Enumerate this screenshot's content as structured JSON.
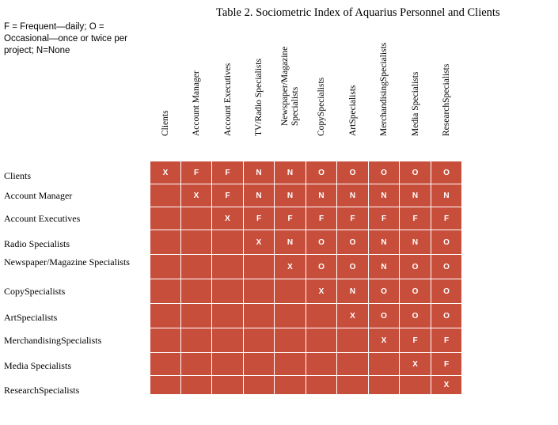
{
  "title": "Table 2. Sociometric Index of Aquarius Personnel and Clients",
  "legend": "F = Frequent—daily; O = Occasional—once or twice per project; N=None",
  "colors": {
    "cell": "#c84e3c",
    "grid_line": "#ffffff",
    "cell_text": "#ffffff"
  },
  "columns": [
    [
      "Clients"
    ],
    [
      "Account  Manager"
    ],
    [
      "Account  Executives"
    ],
    [
      "TV/Radio Specialists"
    ],
    [
      "Newspaper/Magazine",
      "Specialists"
    ],
    [
      "CopySpecialists"
    ],
    [
      "ArtSpecialists"
    ],
    [
      "MerchandisingSpecialists"
    ],
    [
      "Media Specialists"
    ],
    [
      "ResearchSpecialists"
    ]
  ],
  "rows": [
    {
      "label": "Clients",
      "cells": [
        "X",
        "F",
        "F",
        "N",
        "N",
        "O",
        "O",
        "O",
        "O",
        "O"
      ]
    },
    {
      "label": "Account  Manager",
      "cells": [
        "",
        "X",
        "F",
        "N",
        "N",
        "N",
        "N",
        "N",
        "N",
        "N"
      ]
    },
    {
      "label": "Account  Executives",
      "cells": [
        "",
        "",
        "X",
        "F",
        "F",
        "F",
        "F",
        "F",
        "F",
        "F"
      ]
    },
    {
      "label": "Radio Specialists",
      "cells": [
        "",
        "",
        "",
        "X",
        "N",
        "O",
        "O",
        "N",
        "N",
        "O"
      ]
    },
    {
      "label": "Newspaper/Magazine Specialists",
      "cells": [
        "",
        "",
        "",
        "",
        "X",
        "O",
        "O",
        "N",
        "O",
        "O"
      ]
    },
    {
      "label": "CopySpecialists",
      "cells": [
        "",
        "",
        "",
        "",
        "",
        "X",
        "N",
        "O",
        "O",
        "O"
      ]
    },
    {
      "label": "ArtSpecialists",
      "cells": [
        "",
        "",
        "",
        "",
        "",
        "",
        "X",
        "O",
        "O",
        "O"
      ]
    },
    {
      "label": "MerchandisingSpecialists",
      "cells": [
        "",
        "",
        "",
        "",
        "",
        "",
        "",
        "X",
        "F",
        "F"
      ]
    },
    {
      "label": "Media Specialists",
      "cells": [
        "",
        "",
        "",
        "",
        "",
        "",
        "",
        "",
        "X",
        "F"
      ]
    },
    {
      "label": "ResearchSpecialists",
      "cells": [
        "",
        "",
        "",
        "",
        "",
        "",
        "",
        "",
        "",
        "X"
      ]
    }
  ]
}
